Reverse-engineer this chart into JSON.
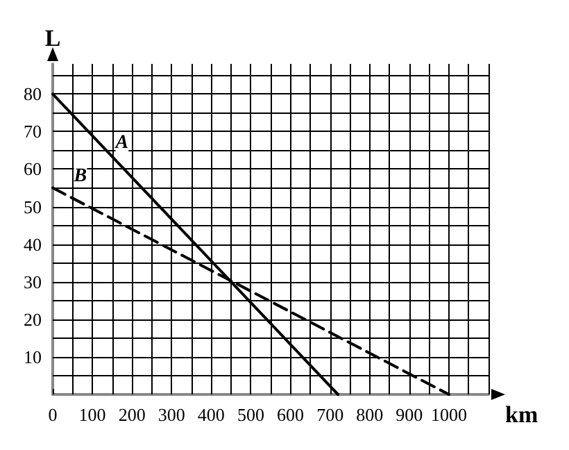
{
  "chart_data": {
    "type": "line",
    "xlabel": "km",
    "ylabel": "L",
    "xlim": [
      0,
      1100
    ],
    "ylim": [
      0,
      88
    ],
    "xticks": [
      0,
      {
        "value": 50,
        "label": null
      },
      100,
      {
        "value": 150,
        "label": null
      },
      200,
      {
        "value": 250,
        "label": null
      },
      300,
      {
        "value": 350,
        "label": null
      },
      400,
      {
        "value": 450,
        "label": null
      },
      500,
      {
        "value": 550,
        "label": null
      },
      600,
      {
        "value": 650,
        "label": null
      },
      700,
      {
        "value": 750,
        "label": null
      },
      800,
      {
        "value": 850,
        "label": null
      },
      900,
      {
        "value": 950,
        "label": null
      },
      1000,
      {
        "value": 1050,
        "label": null
      },
      {
        "value": 1100,
        "label": null
      }
    ],
    "yticks": [
      {
        "value": 5,
        "label": null
      },
      10,
      {
        "value": 15,
        "label": null
      },
      20,
      {
        "value": 25,
        "label": null
      },
      30,
      {
        "value": 35,
        "label": null
      },
      40,
      {
        "value": 45,
        "label": null
      },
      50,
      {
        "value": 55,
        "label": null
      },
      60,
      {
        "value": 65,
        "label": null
      },
      70,
      {
        "value": 75,
        "label": null
      },
      80,
      {
        "value": 85,
        "label": null
      }
    ],
    "grid": true,
    "marker": "none",
    "series": [
      {
        "color": "#000000",
        "line_style": "solid",
        "x": [
          0,
          720
        ],
        "values": [
          80,
          0
        ]
      },
      {
        "color": "#000000",
        "line_style": "dashed",
        "x": [
          0,
          1000
        ],
        "values": [
          55,
          0
        ]
      }
    ],
    "annotations": [
      {
        "text": "A",
        "x": 175,
        "y": 67
      },
      {
        "text": "B",
        "x": 70,
        "y": 58
      }
    ]
  }
}
